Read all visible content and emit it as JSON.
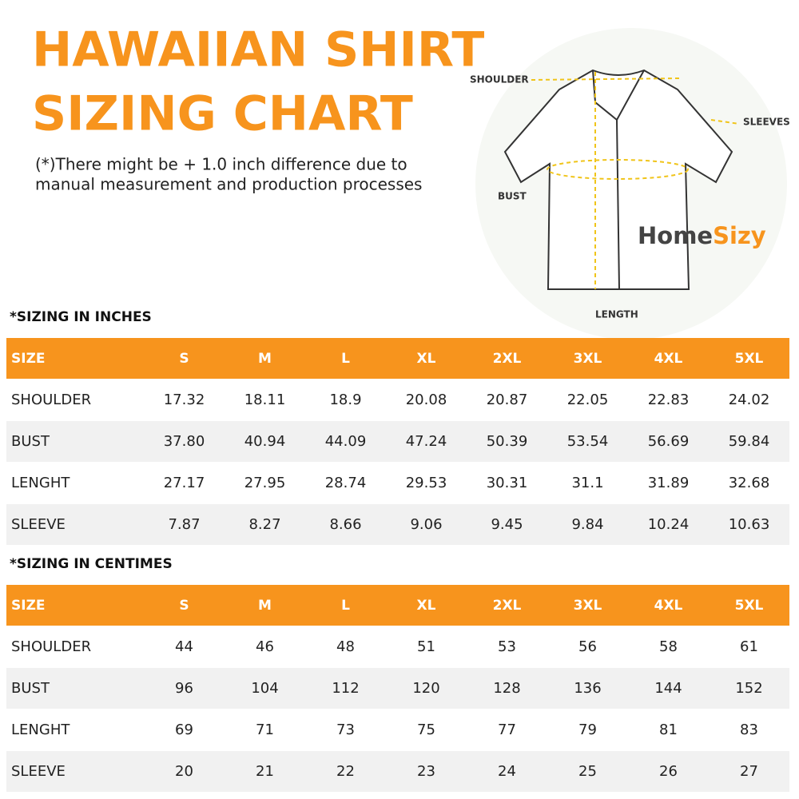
{
  "header": {
    "title_lines": [
      "HAWAIIAN SHIRT",
      "SIZING CHART"
    ],
    "note_lines": [
      "(*)There might be + 1.0 inch difference due to",
      "manual measurement and production processes"
    ]
  },
  "diagram": {
    "labels": {
      "shoulder": "SHOULDER",
      "sleeves": "SLEEVES",
      "bust": "BUST",
      "length": "LENGTH"
    }
  },
  "brand": {
    "part1": "Home",
    "part2": "Sizy"
  },
  "tables": [
    {
      "heading": "*SIZING IN INCHES",
      "columns": [
        "SIZE",
        "S",
        "M",
        "L",
        "XL",
        "2XL",
        "3XL",
        "4XL",
        "5XL"
      ],
      "rows": [
        [
          "SHOULDER",
          "17.32",
          "18.11",
          "18.9",
          "20.08",
          "20.87",
          "22.05",
          "22.83",
          "24.02"
        ],
        [
          "BUST",
          "37.80",
          "40.94",
          "44.09",
          "47.24",
          "50.39",
          "53.54",
          "56.69",
          "59.84"
        ],
        [
          "LENGHT",
          "27.17",
          "27.95",
          "28.74",
          "29.53",
          "30.31",
          "31.1",
          "31.89",
          "32.68"
        ],
        [
          "SLEEVE",
          "7.87",
          "8.27",
          "8.66",
          "9.06",
          "9.45",
          "9.84",
          "10.24",
          "10.63"
        ]
      ]
    },
    {
      "heading": "*SIZING IN CENTIMES",
      "columns": [
        "SIZE",
        "S",
        "M",
        "L",
        "XL",
        "2XL",
        "3XL",
        "4XL",
        "5XL"
      ],
      "rows": [
        [
          "SHOULDER",
          "44",
          "46",
          "48",
          "51",
          "53",
          "56",
          "58",
          "61"
        ],
        [
          "BUST",
          "96",
          "104",
          "112",
          "120",
          "128",
          "136",
          "144",
          "152"
        ],
        [
          "LENGHT",
          "69",
          "71",
          "73",
          "75",
          "77",
          "79",
          "81",
          "83"
        ],
        [
          "SLEEVE",
          "20",
          "21",
          "22",
          "23",
          "24",
          "25",
          "26",
          "27"
        ]
      ]
    }
  ]
}
